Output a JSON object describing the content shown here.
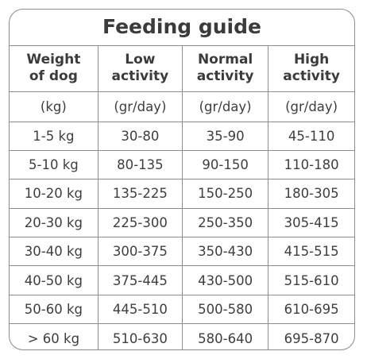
{
  "title": "Feeding guide",
  "headers": [
    [
      "Weight",
      "of dog"
    ],
    [
      "Low",
      "activity"
    ],
    [
      "Normal",
      "activity"
    ],
    [
      "High",
      "activity"
    ]
  ],
  "units": [
    "(kg)",
    "(gr/day)",
    "(gr/day)",
    "(gr/day)"
  ],
  "rows": [
    [
      "1-5 kg",
      "30-80",
      "35-90",
      "45-110"
    ],
    [
      "5-10 kg",
      "80-135",
      "90-150",
      "110-180"
    ],
    [
      "10-20 kg",
      "135-225",
      "150-250",
      "180-305"
    ],
    [
      "20-30 kg",
      "225-300",
      "250-350",
      "305-415"
    ],
    [
      "30-40 kg",
      "300-375",
      "350-430",
      "415-515"
    ],
    [
      "40-50 kg",
      "375-445",
      "430-500",
      "515-610"
    ],
    [
      "50-60 kg",
      "445-510",
      "500-580",
      "610-695"
    ],
    [
      "> 60 kg",
      "510-630",
      "580-640",
      "695-870"
    ]
  ]
}
